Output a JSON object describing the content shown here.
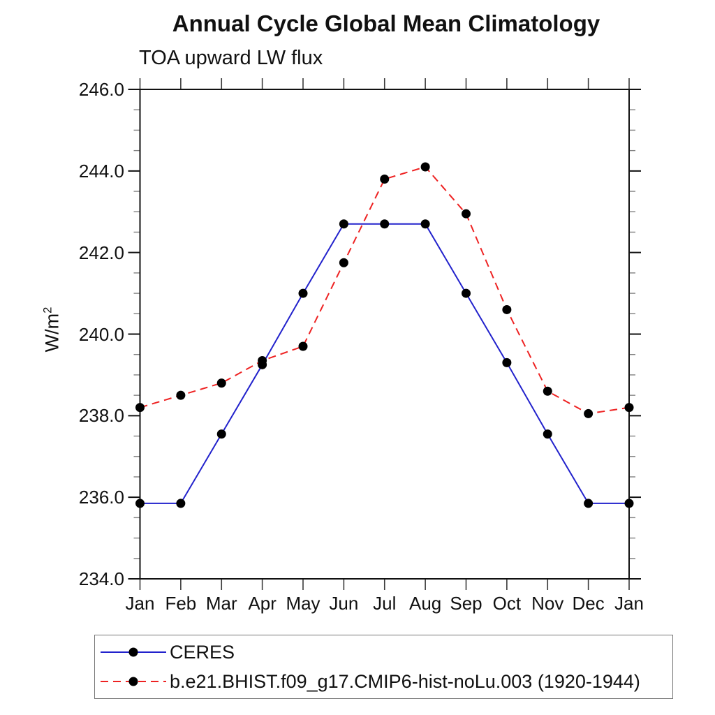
{
  "chart_data": {
    "type": "line",
    "title": "Annual Cycle Global Mean Climatology",
    "subtitle": "TOA upward LW flux",
    "ylabel_base": "W/m",
    "ylabel_sup": "2",
    "categories": [
      "Jan",
      "Feb",
      "Mar",
      "Apr",
      "May",
      "Jun",
      "Jul",
      "Aug",
      "Sep",
      "Oct",
      "Nov",
      "Dec",
      "Jan"
    ],
    "series": [
      {
        "name": "CERES",
        "color": "#2222cc",
        "line_style": "solid",
        "marker": "filled-circle",
        "values": [
          235.85,
          235.85,
          237.55,
          239.25,
          241.0,
          242.7,
          242.7,
          242.7,
          241.0,
          239.3,
          237.55,
          235.85,
          235.85
        ]
      },
      {
        "name": "b.e21.BHIST.f09_g17.CMIP6-hist-noLu.003 (1920-1944)",
        "color": "#ee2222",
        "line_style": "dashed",
        "marker": "filled-circle",
        "values": [
          238.2,
          238.5,
          238.8,
          239.35,
          239.7,
          241.75,
          243.8,
          244.1,
          242.95,
          240.6,
          238.6,
          238.05,
          238.2
        ]
      }
    ],
    "ylim": [
      234,
      246
    ],
    "yticks": [
      {
        "v": 246,
        "label": "246.0"
      },
      {
        "v": 244,
        "label": "244.0"
      },
      {
        "v": 242,
        "label": "242.0"
      },
      {
        "v": 240,
        "label": "240.0"
      },
      {
        "v": 238,
        "label": "238.0"
      },
      {
        "v": 236,
        "label": "236.0"
      },
      {
        "v": 234,
        "label": "234.0"
      }
    ],
    "ytick_step": 2.0,
    "yminor_step": 0.5,
    "grid": false,
    "marker_color": "#000000",
    "legend_position": "bottom-left"
  }
}
